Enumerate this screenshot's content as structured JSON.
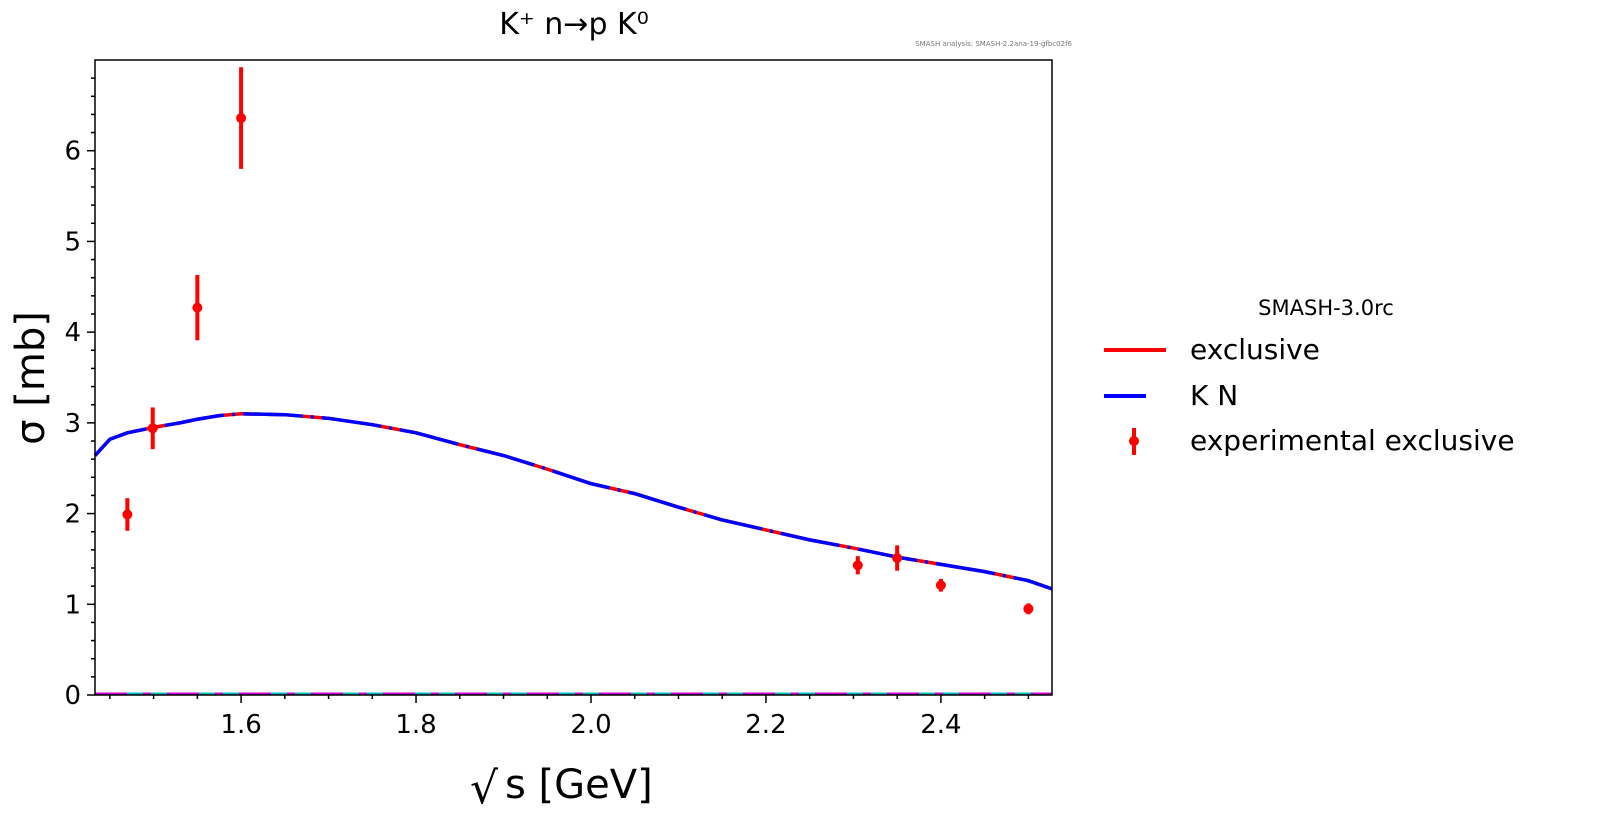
{
  "chart_data": {
    "type": "line",
    "title": "K⁺ n→p K⁰",
    "watermark": "SMASH analysis: SMASH-2.2ana-19-gfbc02f6",
    "xlabel": "s [GeV]",
    "xlabel_prefix": "√",
    "ylabel": "σ [mb]",
    "xlim": [
      1.433,
      2.527
    ],
    "ylim": [
      0,
      7
    ],
    "xticks": [
      "1.6",
      "1.8",
      "2.0",
      "2.2",
      "2.4"
    ],
    "yticks": [
      "0",
      "1",
      "2",
      "3",
      "4",
      "5",
      "6"
    ],
    "legend": {
      "title": "SMASH-3.0rc",
      "placement": "outside-right",
      "entries": [
        "exclusive",
        "K N",
        "experimental exclusive"
      ]
    },
    "colors": {
      "exclusive": "#ff0000",
      "kn": "#0000ff",
      "experimental": "#ff0000",
      "zero_a": "#cc00cc",
      "zero_b": "#00bbbb"
    },
    "series": [
      {
        "name": "exclusive",
        "x": [
          1.433,
          1.45,
          1.47,
          1.5,
          1.53,
          1.55,
          1.575,
          1.6,
          1.65,
          1.7,
          1.75,
          1.8,
          1.85,
          1.9,
          1.95,
          2.0,
          2.05,
          2.1,
          2.15,
          2.2,
          2.25,
          2.3,
          2.35,
          2.4,
          2.45,
          2.5,
          2.527
        ],
        "y": [
          2.64,
          2.82,
          2.89,
          2.95,
          3.0,
          3.04,
          3.08,
          3.1,
          3.09,
          3.05,
          2.98,
          2.89,
          2.76,
          2.64,
          2.49,
          2.33,
          2.22,
          2.07,
          1.93,
          1.82,
          1.71,
          1.62,
          1.52,
          1.44,
          1.36,
          1.26,
          1.17
        ]
      },
      {
        "name": "K N",
        "x": [
          1.433,
          1.45,
          1.47,
          1.5,
          1.53,
          1.55,
          1.575,
          1.6,
          1.65,
          1.7,
          1.75,
          1.8,
          1.85,
          1.9,
          1.95,
          2.0,
          2.05,
          2.1,
          2.15,
          2.2,
          2.25,
          2.3,
          2.35,
          2.4,
          2.45,
          2.5,
          2.527
        ],
        "y": [
          2.64,
          2.82,
          2.89,
          2.95,
          3.0,
          3.04,
          3.08,
          3.1,
          3.09,
          3.05,
          2.98,
          2.89,
          2.76,
          2.64,
          2.49,
          2.33,
          2.22,
          2.07,
          1.93,
          1.82,
          1.71,
          1.62,
          1.52,
          1.44,
          1.36,
          1.26,
          1.17
        ]
      },
      {
        "name": "experimental exclusive",
        "x": [
          1.47,
          1.499,
          1.55,
          1.6,
          2.305,
          2.35,
          2.4,
          2.5
        ],
        "y": [
          1.99,
          2.94,
          4.27,
          6.36,
          1.43,
          1.51,
          1.21,
          0.95
        ],
        "yerr": [
          0.18,
          0.23,
          0.36,
          0.56,
          0.1,
          0.14,
          0.07,
          0.06
        ]
      }
    ]
  }
}
